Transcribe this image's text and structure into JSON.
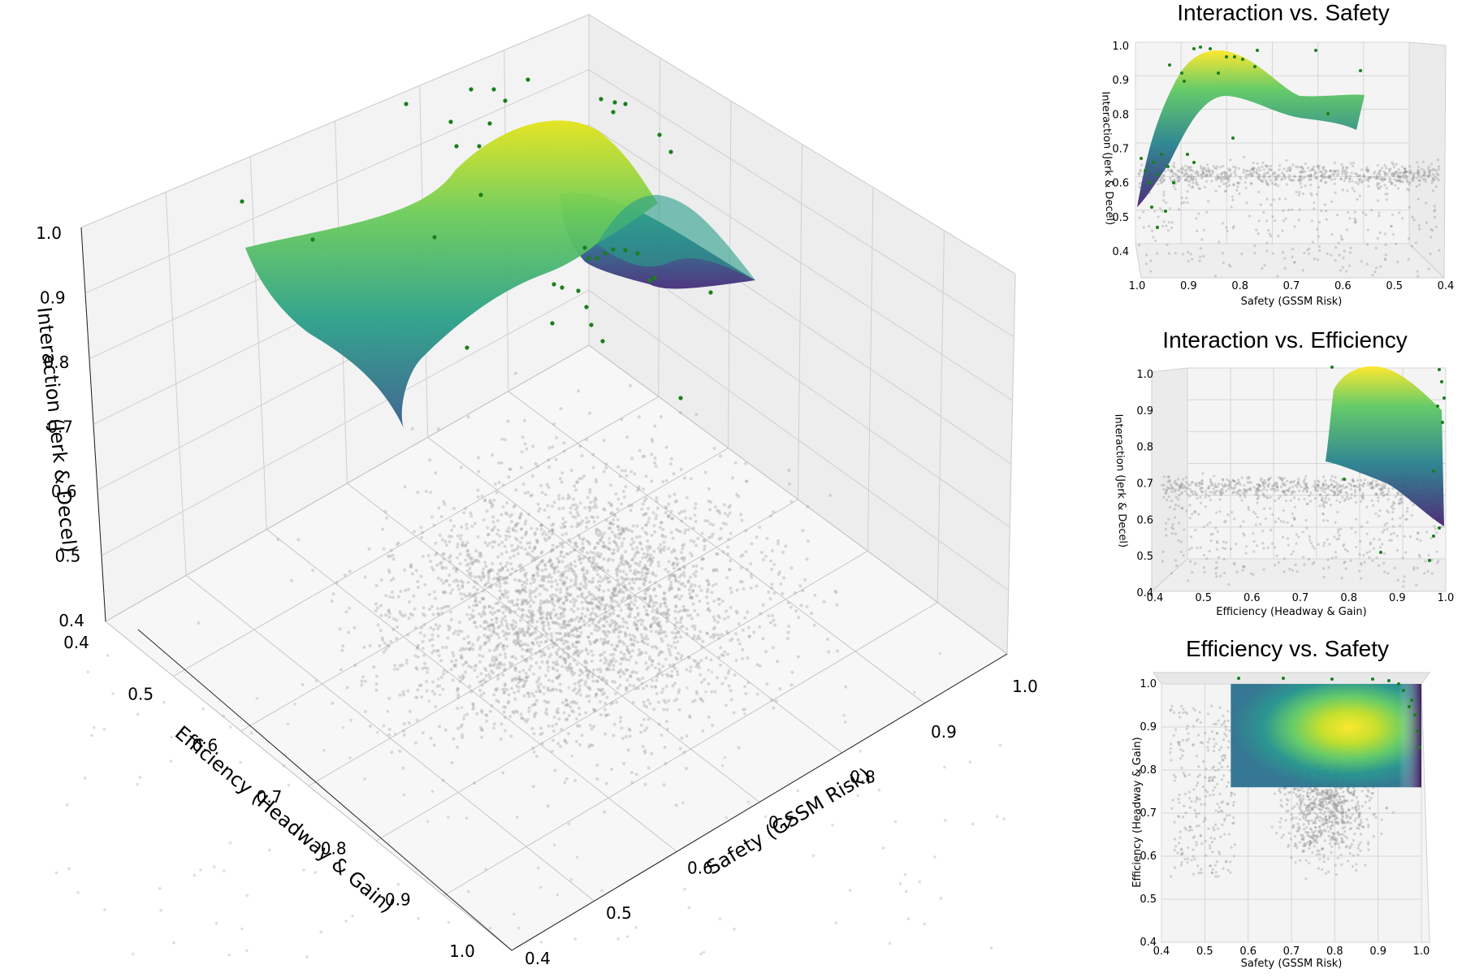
{
  "chart_data": [
    {
      "id": "main",
      "type": "surface3d",
      "title": "",
      "xlabel": "Safety (GSSM Risk)",
      "ylabel": "Efficiency (Headway & Gain)",
      "zlabel": "Interaction (Jerk & Decel)",
      "xlim": [
        0.4,
        1.0
      ],
      "ylim": [
        0.4,
        1.0
      ],
      "zlim": [
        0.4,
        1.0
      ],
      "xticks": [
        "0.4",
        "0.5",
        "0.6",
        "0.7",
        "0.8",
        "0.9",
        "1.0"
      ],
      "yticks": [
        "0.4",
        "0.5",
        "0.6",
        "0.7",
        "0.8",
        "0.9",
        "1.0"
      ],
      "zticks": [
        "0.4",
        "0.5",
        "0.6",
        "0.7",
        "0.8",
        "0.9",
        "1.0"
      ],
      "surface": {
        "x_range": [
          0.55,
          1.0
        ],
        "y_range": [
          0.75,
          1.0
        ],
        "peak": [
          0.82,
          0.9,
          0.98
        ],
        "base": 0.72,
        "colormap": "viridis"
      },
      "points": {
        "gray_count": 3000,
        "green_count": 45,
        "gray_color": "#9a9a9a",
        "green_color": "#1a7f1a"
      },
      "grid": true
    },
    {
      "id": "interaction-vs-safety",
      "type": "surface3d",
      "title": "Interaction vs. Safety",
      "xlabel": "Safety (GSSM Risk)",
      "zlabel": "Interaction (Jerk & Decel)",
      "xticks": [
        "1.0",
        "0.9",
        "0.8",
        "0.7",
        "0.6",
        "0.5",
        "0.4"
      ],
      "zticks": [
        "0.4",
        "0.5",
        "0.6",
        "0.7",
        "0.8",
        "0.9",
        "1.0"
      ]
    },
    {
      "id": "interaction-vs-efficiency",
      "type": "surface3d",
      "title": "Interaction vs. Efficiency",
      "xlabel": "Efficiency (Headway & Gain)",
      "zlabel": "Interaction (Jerk & Decel)",
      "xticks": [
        "0.4",
        "0.5",
        "0.6",
        "0.7",
        "0.8",
        "0.9",
        "1.0"
      ],
      "zticks": [
        "0.4",
        "0.5",
        "0.6",
        "0.7",
        "0.8",
        "0.9",
        "1.0"
      ]
    },
    {
      "id": "efficiency-vs-safety",
      "type": "heatmap",
      "title": "Efficiency vs. Safety",
      "xlabel": "Safety (GSSM Risk)",
      "ylabel": "Efficiency (Headway & Gain)",
      "xticks": [
        "0.4",
        "0.5",
        "0.6",
        "0.7",
        "0.8",
        "0.9",
        "1.0"
      ],
      "yticks": [
        "0.4",
        "0.5",
        "0.6",
        "0.7",
        "0.8",
        "0.9",
        "1.0"
      ],
      "xlim": [
        0.4,
        1.0
      ],
      "ylim": [
        0.4,
        1.0
      ],
      "surface_extent": {
        "x": [
          0.56,
          1.0
        ],
        "y": [
          0.76,
          1.0
        ]
      },
      "peak": [
        0.83,
        0.87
      ]
    }
  ]
}
